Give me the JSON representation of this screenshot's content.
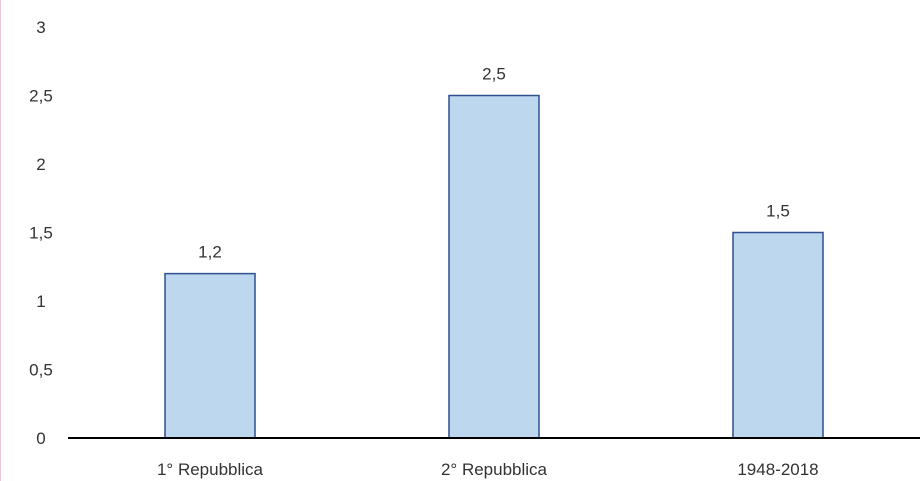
{
  "chart_data": {
    "type": "bar",
    "title": "",
    "xlabel": "",
    "ylabel": "",
    "categories": [
      "1° Repubblica",
      "2° Repubblica",
      "1948-2018"
    ],
    "values": [
      1.2,
      2.5,
      1.5
    ],
    "data_labels": [
      "1,2",
      "2,5",
      "1,5"
    ],
    "y_ticks": [
      0,
      0.5,
      1,
      1.5,
      2,
      2.5,
      3
    ],
    "y_tick_labels": [
      "0",
      "0,5",
      "1",
      "1,5",
      "2",
      "2,5",
      "3"
    ],
    "ylim": [
      0,
      3
    ],
    "grid": false,
    "legend": "none",
    "colors": {
      "bar_fill": "#bdd7ee",
      "bar_stroke": "#2f4f8f",
      "axis": "#000000",
      "text": "#333333"
    }
  }
}
